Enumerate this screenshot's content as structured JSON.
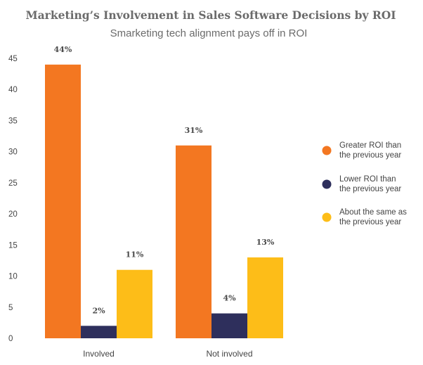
{
  "chart_data": {
    "type": "bar",
    "title": "Marketing’s Involvement in Sales Software Decisions by ROI",
    "subtitle": "Smarketing tech alignment pays off in ROI",
    "categories": [
      "Involved",
      "Not involved"
    ],
    "series": [
      {
        "name": "Greater ROI than the previous year",
        "legend_lines": [
          "Greater ROI than",
          "the previous year"
        ],
        "color": "#f37721",
        "values": [
          44,
          31
        ],
        "labels": [
          "44%",
          "31%"
        ]
      },
      {
        "name": "Lower ROI than the previous year",
        "legend_lines": [
          "Lower ROI than",
          "the previous year"
        ],
        "color": "#2e2f5c",
        "values": [
          2,
          4
        ],
        "labels": [
          "2%",
          "4%"
        ]
      },
      {
        "name": "About the same as the previous year",
        "legend_lines": [
          "About the same as",
          "the previous year"
        ],
        "color": "#fdbd18",
        "values": [
          11,
          13
        ],
        "labels": [
          "11%",
          "13%"
        ]
      }
    ],
    "ylim": [
      0,
      45
    ],
    "yticks": [
      "0",
      "5",
      "10",
      "15",
      "20",
      "25",
      "30",
      "35",
      "40",
      "45"
    ],
    "grid": false,
    "legend_position": "right",
    "xlabel": "",
    "ylabel": ""
  }
}
